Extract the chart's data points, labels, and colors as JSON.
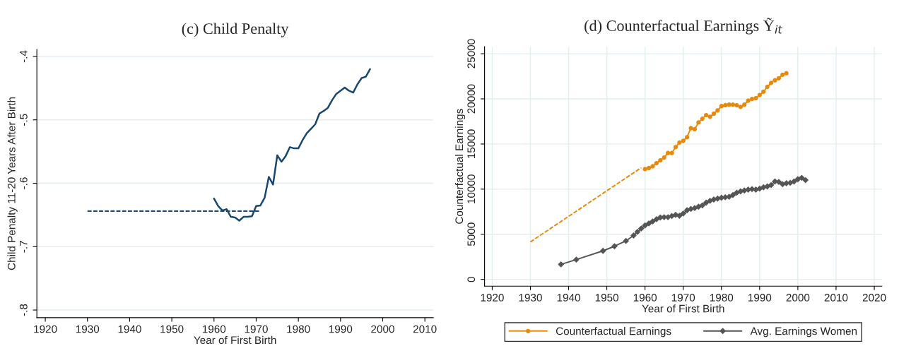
{
  "chart_data": [
    {
      "type": "line",
      "title": "(c) Child Penalty",
      "xlabel": "Year of First Birth",
      "ylabel": "Child Penalty 11-20 Years After Birth",
      "xlim": [
        1918,
        2012
      ],
      "xticks": [
        1920,
        1930,
        1940,
        1950,
        1960,
        1970,
        1980,
        1990,
        2000,
        2010
      ],
      "ylim": [
        -0.812,
        -0.389
      ],
      "yticks": [
        {
          "value": -0.8,
          "label": "-.8"
        },
        {
          "value": -0.7,
          "label": "-.7"
        },
        {
          "value": -0.6,
          "label": "-.6"
        },
        {
          "value": -0.5,
          "label": "-.5"
        },
        {
          "value": -0.4,
          "label": "-.4"
        }
      ],
      "grid": "y",
      "legend": false,
      "series": [
        {
          "color": "#1a476f",
          "line_style": "dashed",
          "marker": "none",
          "x": [
            1930,
            1971
          ],
          "values": [
            -0.644,
            -0.644
          ]
        },
        {
          "color": "#1a476f",
          "line_style": "solid",
          "marker": "none",
          "x": [
            1960,
            1961,
            1962,
            1963,
            1964,
            1965,
            1966,
            1967,
            1968,
            1969,
            1970,
            1971,
            1972,
            1973,
            1974,
            1975,
            1976,
            1977,
            1978,
            1979,
            1980,
            1981,
            1982,
            1983,
            1984,
            1985,
            1986,
            1987,
            1988,
            1989,
            1990,
            1991,
            1992,
            1993,
            1994,
            1995,
            1996,
            1997
          ],
          "values": [
            -0.624,
            -0.636,
            -0.643,
            -0.641,
            -0.653,
            -0.654,
            -0.659,
            -0.653,
            -0.653,
            -0.652,
            -0.636,
            -0.635,
            -0.623,
            -0.59,
            -0.602,
            -0.556,
            -0.566,
            -0.557,
            -0.543,
            -0.545,
            -0.545,
            -0.532,
            -0.521,
            -0.514,
            -0.507,
            -0.49,
            -0.486,
            -0.481,
            -0.469,
            -0.459,
            -0.454,
            -0.449,
            -0.454,
            -0.457,
            -0.444,
            -0.434,
            -0.432,
            -0.42
          ]
        }
      ]
    },
    {
      "type": "line",
      "title": "(d) Counterfactual Earnings Ỹ$_{it}$",
      "xlabel": "Year of First Birth",
      "ylabel": "Counterfactual Earnings",
      "xlim": [
        1918,
        2022
      ],
      "xticks": [
        1920,
        1930,
        1940,
        1950,
        1960,
        1970,
        1980,
        1990,
        2000,
        2010,
        2020
      ],
      "ylim": [
        -750,
        25780
      ],
      "yticks": [
        0,
        5000,
        10000,
        15000,
        20000,
        25000
      ],
      "grid": true,
      "legend": "bottom",
      "series": [
        {
          "color": "#e8890c",
          "line_style": "dashed",
          "marker": "none",
          "x": [
            1930,
            1959
          ],
          "values": [
            4150,
            12370
          ]
        },
        {
          "name": "Counterfactual Earnings",
          "color": "#e8890c",
          "line_style": "solid",
          "marker": "circle",
          "x": [
            1960,
            1961,
            1962,
            1963,
            1964,
            1965,
            1966,
            1967,
            1968,
            1969,
            1970,
            1971,
            1972,
            1973,
            1974,
            1975,
            1976,
            1977,
            1978,
            1979,
            1980,
            1981,
            1982,
            1983,
            1984,
            1985,
            1986,
            1987,
            1988,
            1989,
            1990,
            1991,
            1992,
            1993,
            1994,
            1995,
            1996,
            1997
          ],
          "values": [
            12220,
            12340,
            12530,
            12880,
            13190,
            13500,
            14000,
            14000,
            14660,
            15160,
            15350,
            15760,
            16760,
            16640,
            17390,
            17800,
            18200,
            18020,
            18360,
            18730,
            19200,
            19300,
            19360,
            19360,
            19300,
            19110,
            19360,
            19800,
            19990,
            20080,
            20430,
            20800,
            21330,
            21770,
            22060,
            22280,
            22680,
            22840
          ]
        },
        {
          "name": "Avg. Earnings Women",
          "color": "#555555",
          "line_style": "solid",
          "marker": "diamond",
          "x": [
            1938,
            1942,
            1949,
            1952,
            1955,
            1957,
            1958,
            1959,
            1960,
            1961,
            1962,
            1963,
            1964,
            1965,
            1966,
            1967,
            1968,
            1969,
            1970,
            1971,
            1972,
            1973,
            1974,
            1975,
            1976,
            1977,
            1978,
            1979,
            1980,
            1981,
            1982,
            1983,
            1984,
            1985,
            1986,
            1987,
            1988,
            1989,
            1990,
            1991,
            1992,
            1993,
            1994,
            1995,
            1996,
            1997,
            1998,
            1999,
            2000,
            2001,
            2002
          ],
          "values": [
            1660,
            2190,
            3160,
            3670,
            4260,
            4860,
            5260,
            5640,
            5980,
            6200,
            6420,
            6670,
            6860,
            6890,
            6890,
            7020,
            7150,
            7050,
            7300,
            7660,
            7800,
            7900,
            8050,
            8200,
            8500,
            8700,
            8850,
            8950,
            9050,
            9100,
            9150,
            9350,
            9600,
            9750,
            9850,
            9950,
            10000,
            9950,
            10050,
            10200,
            10300,
            10450,
            10850,
            10800,
            10550,
            10650,
            10700,
            10850,
            11100,
            11250,
            11000
          ]
        }
      ]
    }
  ]
}
